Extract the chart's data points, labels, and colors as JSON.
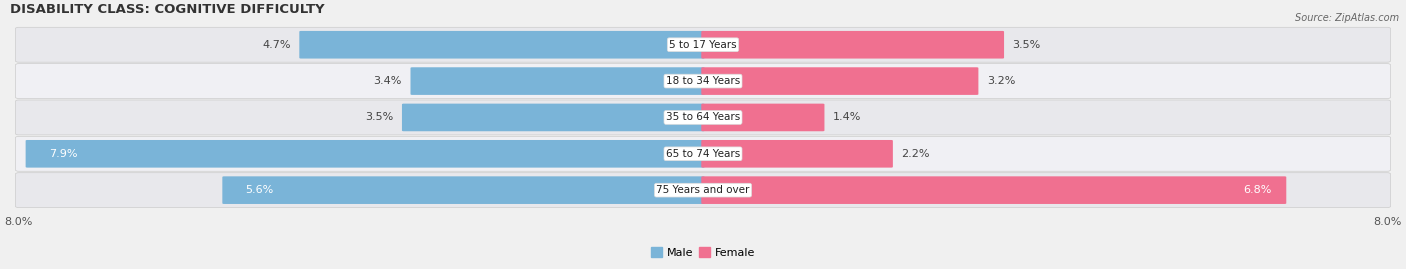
{
  "title": "DISABILITY CLASS: COGNITIVE DIFFICULTY",
  "source": "Source: ZipAtlas.com",
  "categories": [
    "5 to 17 Years",
    "18 to 34 Years",
    "35 to 64 Years",
    "65 to 74 Years",
    "75 Years and over"
  ],
  "male_values": [
    4.7,
    3.4,
    3.5,
    7.9,
    5.6
  ],
  "female_values": [
    3.5,
    3.2,
    1.4,
    2.2,
    6.8
  ],
  "male_color": "#7ab4d8",
  "female_color": "#f07090",
  "male_label_inside": [
    false,
    false,
    false,
    true,
    true
  ],
  "female_label_inside": [
    false,
    false,
    false,
    false,
    true
  ],
  "row_bg_color": "#e8eaed",
  "row_stripe_color": "#ffffff",
  "background_color": "#f0f0f0",
  "max_val": 8.0,
  "title_fontsize": 9.5,
  "label_fontsize": 8.0,
  "source_fontsize": 7.0
}
